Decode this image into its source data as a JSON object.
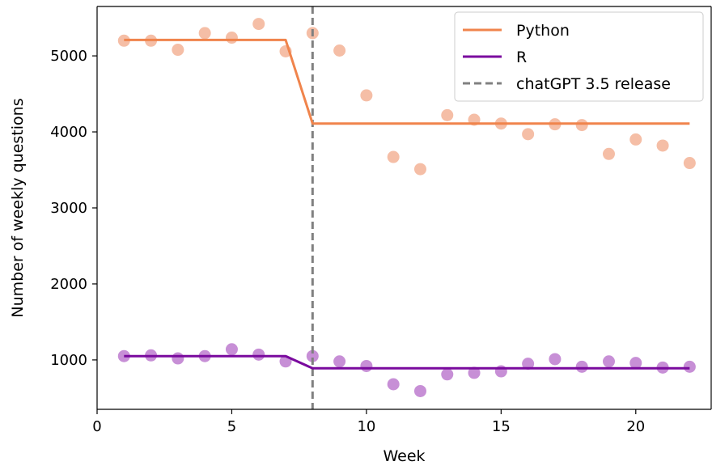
{
  "chart_data": {
    "type": "scatter",
    "title": "",
    "xlabel": "Week",
    "ylabel": "Number of weekly questions",
    "xlim": [
      0,
      22.8
    ],
    "ylim": [
      350,
      5650
    ],
    "xticks": [
      0,
      5,
      10,
      15,
      20
    ],
    "yticks": [
      1000,
      2000,
      3000,
      4000,
      5000
    ],
    "grid": false,
    "legend_position": "top-right",
    "colors": {
      "python": "#f0844c",
      "python_points": "#f5bea6",
      "r": "#7a0a9e",
      "r_points": "#c78fd6",
      "release": "#808080"
    },
    "series": [
      {
        "name": "Python",
        "kind": "points",
        "x": [
          1,
          2,
          3,
          4,
          5,
          6,
          7,
          8,
          9,
          10,
          11,
          12,
          13,
          14,
          15,
          16,
          17,
          18,
          19,
          20,
          21,
          22
        ],
        "y": [
          5200,
          5200,
          5080,
          5300,
          5240,
          5420,
          5060,
          5300,
          5070,
          4480,
          3670,
          3510,
          4220,
          4160,
          4110,
          3970,
          4100,
          4090,
          3710,
          3900,
          3820,
          3590
        ]
      },
      {
        "name": "R",
        "kind": "points",
        "x": [
          1,
          2,
          3,
          4,
          5,
          6,
          7,
          8,
          9,
          10,
          11,
          12,
          13,
          14,
          15,
          16,
          17,
          18,
          19,
          20,
          21,
          22
        ],
        "y": [
          1050,
          1060,
          1020,
          1050,
          1140,
          1070,
          980,
          1050,
          980,
          920,
          680,
          590,
          810,
          830,
          850,
          950,
          1010,
          910,
          980,
          960,
          900,
          910
        ]
      },
      {
        "name": "Python",
        "kind": "line",
        "x": [
          1,
          7,
          8,
          22
        ],
        "y": [
          5210,
          5210,
          4110,
          4110
        ]
      },
      {
        "name": "R",
        "kind": "line",
        "x": [
          1,
          7,
          8,
          22
        ],
        "y": [
          1050,
          1050,
          890,
          890
        ]
      }
    ],
    "vline": {
      "x": 8,
      "name": "chatGPT 3.5 release"
    },
    "legend": [
      "Python",
      "R",
      "chatGPT 3.5 release"
    ]
  }
}
